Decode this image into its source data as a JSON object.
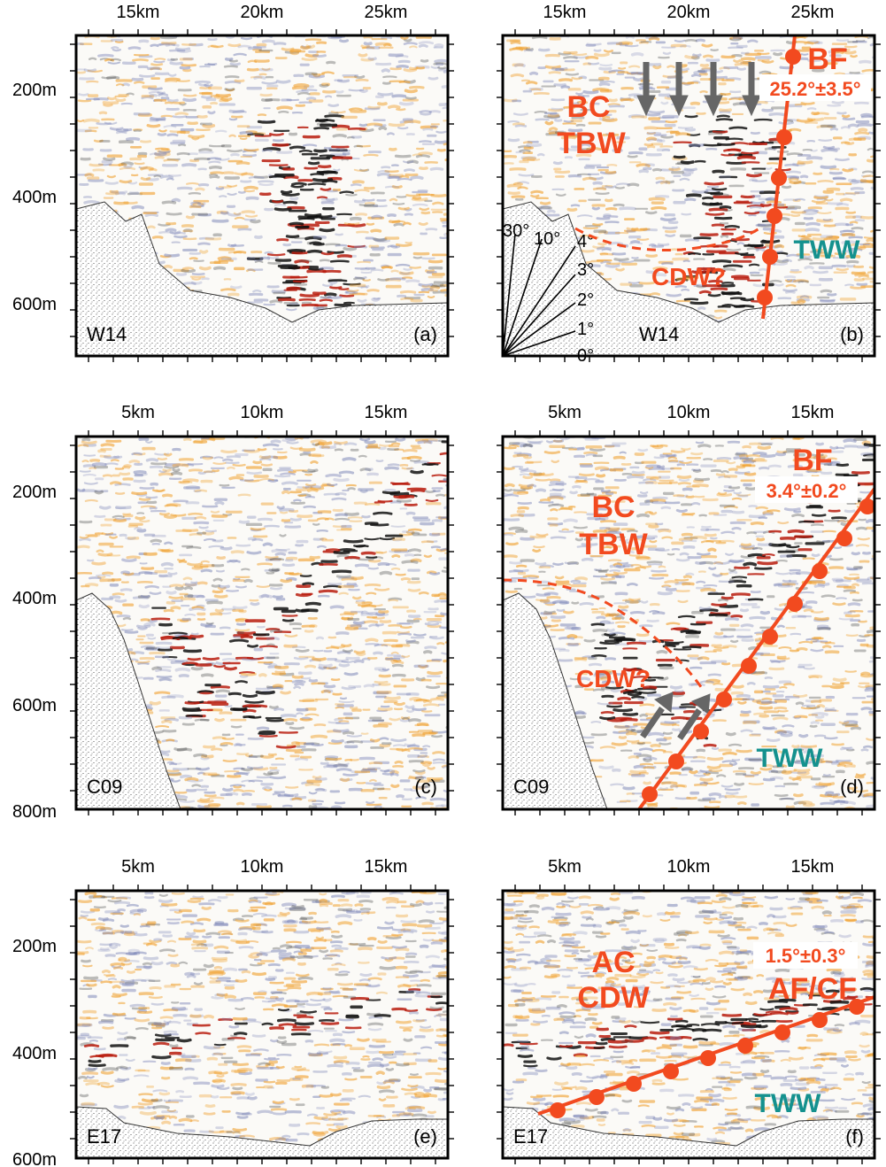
{
  "colors": {
    "accent": "#f24a1f",
    "teal": "#14918e",
    "arrow": "#666666",
    "seismic_dark": "#111111",
    "seismic_red": "#b81c0e",
    "seismic_orange": "#f0a232",
    "seismic_blue": "#7d86b8"
  },
  "panels": [
    {
      "id": "a",
      "station": "W14",
      "letter": "(a)",
      "x_ticks": [
        "15km",
        "20km",
        "25km"
      ],
      "y_ticks": [
        "200m",
        "400m",
        "600m"
      ],
      "labels": []
    },
    {
      "id": "b",
      "station": "W14",
      "letter": "(b)",
      "x_ticks": [
        "15km",
        "20km",
        "25km"
      ],
      "y_ticks": [],
      "labels": {
        "water_mass_1": "BC",
        "water_mass_2": "TBW",
        "front": "BF",
        "front_angle": "25.2°±3.5°",
        "lower_water": "CDW?",
        "right_water": "TWW"
      },
      "slope_scale": [
        "30°",
        "10°",
        "4°",
        "3°",
        "2°",
        "1°",
        "0°"
      ]
    },
    {
      "id": "c",
      "station": "C09",
      "letter": "(c)",
      "x_ticks": [
        "5km",
        "10km",
        "15km"
      ],
      "y_ticks": [
        "200m",
        "400m",
        "600m",
        "800m"
      ],
      "labels": []
    },
    {
      "id": "d",
      "station": "C09",
      "letter": "(d)",
      "x_ticks": [
        "5km",
        "10km",
        "15km"
      ],
      "y_ticks": [],
      "labels": {
        "water_mass_1": "BC",
        "water_mass_2": "TBW",
        "front": "BF",
        "front_angle": "3.4°±0.2°",
        "lower_water": "CDW?",
        "right_water": "TWW"
      }
    },
    {
      "id": "e",
      "station": "E17",
      "letter": "(e)",
      "x_ticks": [
        "5km",
        "10km",
        "15km"
      ],
      "y_ticks": [
        "200m",
        "400m",
        "600m"
      ],
      "labels": []
    },
    {
      "id": "f",
      "station": "E17",
      "letter": "(f)",
      "x_ticks": [
        "5km",
        "10km",
        "15km"
      ],
      "y_ticks": [],
      "labels": {
        "water_mass_1": "AC",
        "water_mass_2": "CDW",
        "front": "AF/CF",
        "front_angle": "1.5°±0.3°",
        "right_water": "TWW"
      }
    }
  ]
}
